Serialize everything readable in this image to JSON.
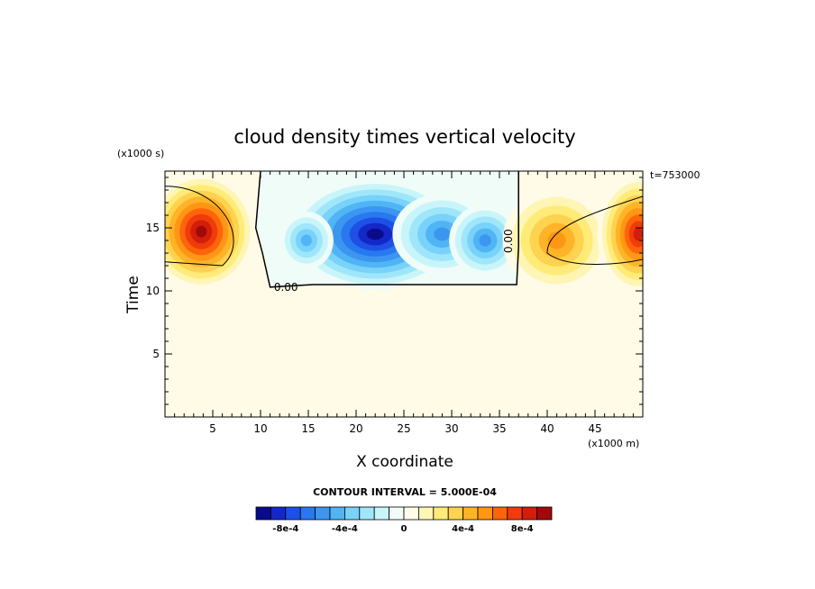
{
  "chart_data": {
    "type": "heatmap",
    "title": "cloud density times vertical velocity",
    "xlabel": "X coordinate",
    "ylabel": "Time",
    "x_units": "(x1000 m)",
    "y_units": "(x1000 s)",
    "time_stamp": "t=753000",
    "xlim": [
      0,
      50
    ],
    "ylim": [
      0,
      19.5
    ],
    "x_ticks": [
      5,
      10,
      15,
      20,
      25,
      30,
      35,
      40,
      45
    ],
    "y_ticks": [
      5,
      10,
      15
    ],
    "contour_interval_text": "CONTOUR INTERVAL = 5.000E-04",
    "contour_labels": [
      "0.00",
      "0.00"
    ],
    "colorbar": {
      "levels": [
        -0.001,
        -0.0009,
        -0.0008,
        -0.0007,
        -0.0006,
        -0.0005,
        -0.0004,
        -0.0003,
        -0.0002,
        -0.0001,
        0,
        0.0001,
        0.0002,
        0.0003,
        0.0004,
        0.0005,
        0.0006,
        0.0007,
        0.0008,
        0.0009,
        0.001
      ],
      "colors": [
        "#0a0a8c",
        "#1428c8",
        "#1e50e6",
        "#2878f0",
        "#3c96f0",
        "#50b4f5",
        "#78d2fa",
        "#a0e6fa",
        "#c8f5fa",
        "#f0fcf8",
        "#fffbe6",
        "#fff5b4",
        "#ffeb78",
        "#ffd250",
        "#ffb428",
        "#ff9614",
        "#ff640a",
        "#f03c0a",
        "#d21e0a",
        "#a00a0a"
      ],
      "tick_labels": [
        "-8e-4",
        "-4e-4",
        "0",
        "4e-4",
        "8e-4"
      ],
      "tick_values": [
        -0.0008,
        -0.0004,
        0,
        0.0004,
        0.0008
      ]
    },
    "background_value": 0,
    "features": [
      {
        "kind": "positive",
        "x": 3.8,
        "y": 14.7,
        "peak": 0.00095
      },
      {
        "kind": "negative",
        "x": 22.0,
        "y": 14.5,
        "peak": -0.00095
      },
      {
        "kind": "negative",
        "x": 29.0,
        "y": 14.5,
        "peak": -0.0006
      },
      {
        "kind": "negative",
        "x": 33.5,
        "y": 14.0,
        "peak": -0.0006
      },
      {
        "kind": "negative",
        "x": 14.8,
        "y": 14.0,
        "peak": -0.0005
      },
      {
        "kind": "positive",
        "x": 41.0,
        "y": 14.0,
        "peak": 0.0006
      },
      {
        "kind": "positive",
        "x": 49.5,
        "y": 14.5,
        "peak": 0.0009
      }
    ]
  }
}
